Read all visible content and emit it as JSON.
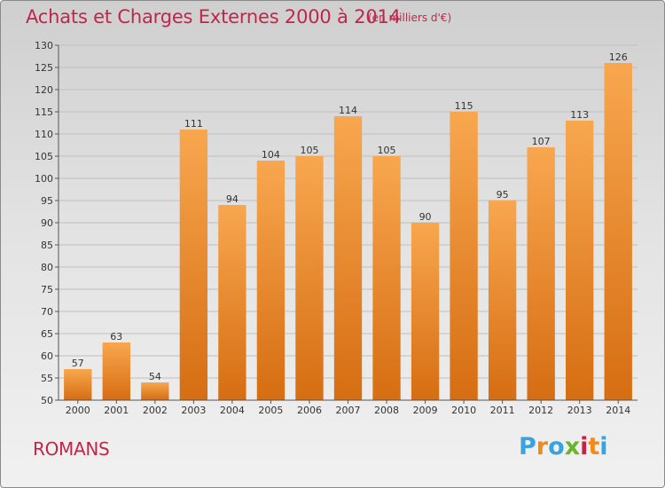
{
  "title": "Achats et Charges Externes 2000 à 2014",
  "subtitle": "(en milliers d'€)",
  "place": "ROMANS",
  "logo": {
    "text": "Proxiti",
    "letters": [
      "P",
      "r",
      "o",
      "x",
      "i",
      "t",
      "i"
    ],
    "colors": [
      "#3aa3dd",
      "#f08a1c",
      "#3aa3dd",
      "#6ab42d",
      "#c0264a",
      "#f08a1c",
      "#3aa3dd"
    ]
  },
  "colors": {
    "bar_top": "#f8a74f",
    "bar_bottom": "#d66d12",
    "title": "#c0264a",
    "grid": "#bfbfbf"
  },
  "chart_data": {
    "type": "bar",
    "title": "Achats et Charges Externes 2000 à 2014",
    "subtitle": "(en milliers d'€)",
    "categories": [
      "2000",
      "2001",
      "2002",
      "2003",
      "2004",
      "2005",
      "2006",
      "2007",
      "2008",
      "2009",
      "2010",
      "2011",
      "2012",
      "2013",
      "2014"
    ],
    "values": [
      57,
      63,
      54,
      111,
      94,
      104,
      105,
      114,
      105,
      90,
      115,
      95,
      107,
      113,
      126
    ],
    "ylim": [
      50,
      130
    ],
    "yticks": [
      50,
      55,
      60,
      65,
      70,
      75,
      80,
      85,
      90,
      95,
      100,
      105,
      110,
      115,
      120,
      125,
      130
    ],
    "grid": true,
    "data_labels": true
  }
}
